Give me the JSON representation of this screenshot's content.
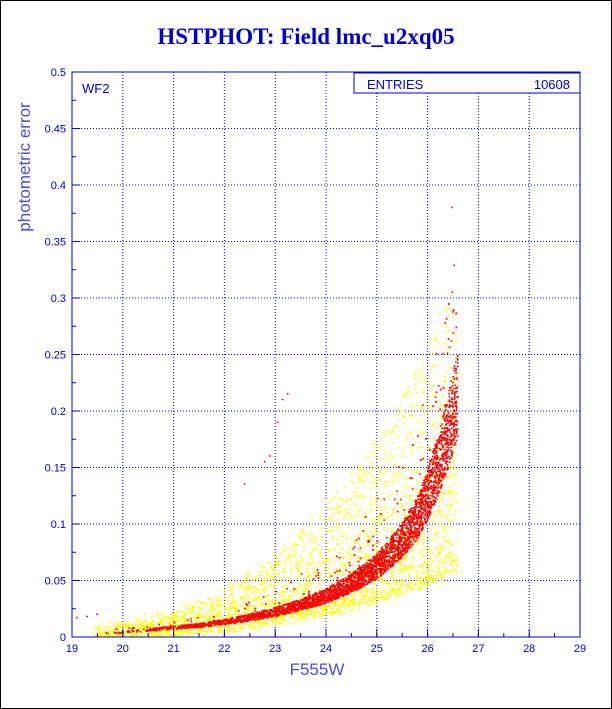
{
  "title": "HSTPHOT: Field lmc_u2xq05",
  "chart_data": {
    "type": "scatter",
    "title": "HSTPHOT: Field lmc_u2xq05",
    "xlabel": "F555W",
    "ylabel": "photometric error",
    "xlim": [
      19,
      29
    ],
    "ylim": [
      0,
      0.5
    ],
    "xticks": [
      "19",
      "20",
      "21",
      "22",
      "23",
      "24",
      "25",
      "26",
      "27",
      "28",
      "29"
    ],
    "yticks": [
      "0",
      "0.05",
      "0.1",
      "0.15",
      "0.2",
      "0.25",
      "0.3",
      "0.35",
      "0.4",
      "0.45",
      "0.5"
    ],
    "grid": true,
    "panel_label": "WF2",
    "stats_box": {
      "label": "ENTRIES",
      "value": "10608",
      "position": "top-right"
    },
    "series": [
      {
        "color": "#ffff00",
        "trend": {
          "x": [
            19.0,
            20.0,
            21.0,
            21.5,
            22.0,
            22.5,
            23.0,
            23.5,
            24.0,
            24.5,
            25.0,
            25.5,
            26.0,
            26.5
          ],
          "y": [
            0.003,
            0.006,
            0.012,
            0.016,
            0.022,
            0.03,
            0.04,
            0.05,
            0.063,
            0.078,
            0.095,
            0.115,
            0.14,
            0.17
          ]
        }
      },
      {
        "color": "#ff0000",
        "trend": {
          "x": [
            19.0,
            19.5,
            20.0,
            20.5,
            21.0,
            21.5,
            22.0,
            22.5,
            23.0,
            23.5,
            24.0,
            24.5,
            25.0,
            25.5,
            25.8,
            26.0,
            26.2,
            26.4,
            26.6
          ],
          "y": [
            0.002,
            0.003,
            0.004,
            0.006,
            0.008,
            0.01,
            0.013,
            0.017,
            0.022,
            0.028,
            0.036,
            0.047,
            0.062,
            0.085,
            0.105,
            0.125,
            0.15,
            0.18,
            0.215
          ]
        },
        "outliers": [
          {
            "x": 19.1,
            "y": 0.017
          },
          {
            "x": 19.3,
            "y": 0.018
          },
          {
            "x": 19.5,
            "y": 0.02
          },
          {
            "x": 23.15,
            "y": 0.21
          },
          {
            "x": 23.25,
            "y": 0.215
          },
          {
            "x": 23.05,
            "y": 0.19
          },
          {
            "x": 22.9,
            "y": 0.16
          },
          {
            "x": 22.8,
            "y": 0.155
          },
          {
            "x": 22.4,
            "y": 0.135
          }
        ]
      }
    ]
  }
}
